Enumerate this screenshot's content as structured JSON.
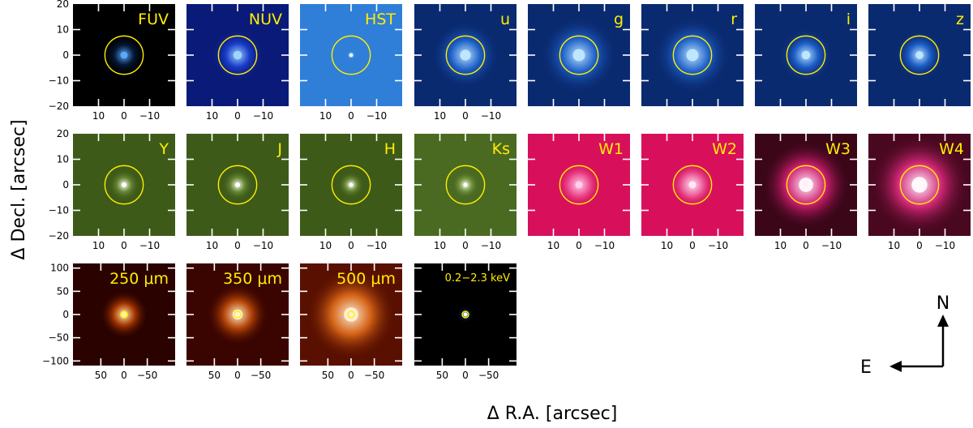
{
  "figure": {
    "y_axis_title": "Δ Decl. [arcsec]",
    "x_axis_title": "Δ R.A. [arcsec]",
    "compass": {
      "north": "N",
      "east": "E"
    },
    "colors": {
      "label": "#ffee00",
      "circle": "#ffee00",
      "tick": "#ffffff"
    }
  },
  "rows": [
    {
      "name": "optical-uv-row",
      "y_ticks": [
        "20",
        "10",
        "0",
        "−10",
        "−20"
      ],
      "y_tick_values": [
        20,
        10,
        0,
        -10,
        -20
      ],
      "x_ticks": [
        "10",
        "0",
        "−10"
      ],
      "x_tick_values": [
        10,
        0,
        -10
      ],
      "range": 20,
      "panels": [
        {
          "band": "FUV",
          "bg": "#000000",
          "mid": "#061a3a",
          "core": "#5aa8ff",
          "glow": 0.5,
          "x_ticks_shown": true
        },
        {
          "band": "NUV",
          "bg": "#0a1a78",
          "mid": "#1a3fd0",
          "core": "#9fd4ff",
          "glow": 0.6,
          "x_ticks_shown": true
        },
        {
          "band": "HST",
          "bg": "#2f7fd8",
          "mid": "#4f9fe8",
          "core": "#e6f4ff",
          "glow": 0.1,
          "x_ticks_shown": true
        },
        {
          "band": "u",
          "bg": "#0a2a70",
          "mid": "#1e64d0",
          "core": "#bfe6ff",
          "glow": 0.75,
          "x_ticks_shown": true
        },
        {
          "band": "g",
          "bg": "#0a2a70",
          "mid": "#1e64d0",
          "core": "#bfe6ff",
          "glow": 0.85,
          "x_ticks_shown": false
        },
        {
          "band": "r",
          "bg": "#0a2a70",
          "mid": "#1e64d0",
          "core": "#bfe6ff",
          "glow": 0.85,
          "x_ticks_shown": false
        },
        {
          "band": "i",
          "bg": "#0a2a70",
          "mid": "#1e64d0",
          "core": "#bfe6ff",
          "glow": 0.6,
          "x_ticks_shown": false
        },
        {
          "band": "z",
          "bg": "#0a2a70",
          "mid": "#1e64d0",
          "core": "#bfe6ff",
          "glow": 0.55,
          "x_ticks_shown": false
        }
      ]
    },
    {
      "name": "infrared-row",
      "y_ticks": [
        "20",
        "10",
        "0",
        "−10",
        "−20"
      ],
      "y_tick_values": [
        20,
        10,
        0,
        -10,
        -20
      ],
      "x_ticks": [
        "10",
        "0",
        "−10"
      ],
      "x_tick_values": [
        10,
        0,
        -10
      ],
      "range": 20,
      "panels": [
        {
          "band": "Y",
          "bg": "#3d5a18",
          "mid": "#6f8f3a",
          "core": "#ffffff",
          "glow": 0.35,
          "x_ticks_shown": true
        },
        {
          "band": "J",
          "bg": "#3d5a18",
          "mid": "#6f8f3a",
          "core": "#ffffff",
          "glow": 0.35,
          "x_ticks_shown": true
        },
        {
          "band": "H",
          "bg": "#3d5a18",
          "mid": "#6f8f3a",
          "core": "#ffffff",
          "glow": 0.3,
          "x_ticks_shown": true
        },
        {
          "band": "Ks",
          "bg": "#4a6a22",
          "mid": "#7f9f4a",
          "core": "#ffffff",
          "glow": 0.3,
          "x_ticks_shown": true
        },
        {
          "band": "W1",
          "bg": "#d8105c",
          "mid": "#f060a0",
          "core": "#ffd0e8",
          "glow": 0.5,
          "x_ticks_shown": true
        },
        {
          "band": "W2",
          "bg": "#d8105c",
          "mid": "#f070a8",
          "core": "#ffe8f4",
          "glow": 0.5,
          "x_ticks_shown": true
        },
        {
          "band": "W3",
          "bg": "#3a0618",
          "mid": "#e0207a",
          "core": "#fff4fa",
          "glow": 1.0,
          "x_ticks_shown": true
        },
        {
          "band": "W4",
          "bg": "#4a0820",
          "mid": "#e02a80",
          "core": "#fff8fc",
          "glow": 1.1,
          "x_ticks_shown": true
        }
      ]
    },
    {
      "name": "far-ir-xray-row",
      "y_ticks": [
        "100",
        "50",
        "0",
        "−50",
        "−100"
      ],
      "y_tick_values": [
        100,
        50,
        0,
        -50,
        -100
      ],
      "x_ticks": [
        "50",
        "0",
        "−50"
      ],
      "x_tick_values": [
        50,
        0,
        -50
      ],
      "range": 110,
      "panels": [
        {
          "band": "250 μm",
          "bg": "#2a0200",
          "mid": "#b03a00",
          "core": "#fff0b0",
          "glow": 0.55,
          "x_ticks_shown": true
        },
        {
          "band": "350 μm",
          "bg": "#3a0400",
          "mid": "#c04a08",
          "core": "#fff4d0",
          "glow": 0.7,
          "x_ticks_shown": true
        },
        {
          "band": "500 μm",
          "bg": "#5a1000",
          "mid": "#e06a18",
          "core": "#fff0d8",
          "glow": 1.0,
          "x_ticks_shown": true
        },
        {
          "band": "0.2−2.3 keV",
          "bg": "#000000",
          "mid": "#061a3a",
          "core": "#ffffff",
          "glow": 0.2,
          "x_ticks_shown": true,
          "small_label": true
        }
      ]
    }
  ]
}
